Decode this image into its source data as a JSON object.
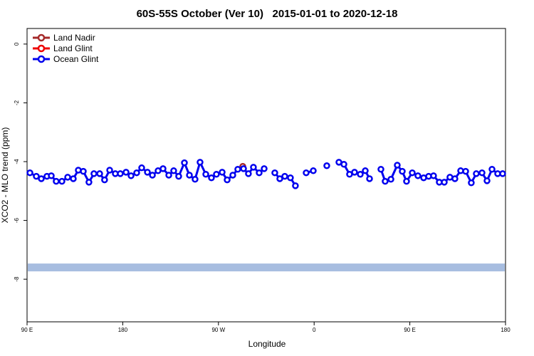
{
  "chart_data": {
    "type": "line",
    "title": "60S-55S October (Ver 10)   2015-01-01 to 2020-12-18",
    "x_label": "Longitude",
    "y_label": "XCO2 - MLO trend (ppm)",
    "xlim": [
      90,
      540
    ],
    "ylim": [
      -9.45,
      0.53
    ],
    "xticks": [
      {
        "value": 90,
        "label": "90 E"
      },
      180,
      {
        "value": 270,
        "label": "90 W"
      },
      {
        "value": 360,
        "label": "0"
      },
      {
        "value": 450,
        "label": "90 E"
      },
      {
        "value": 540,
        "label": "180"
      }
    ],
    "yticks": [
      0,
      -2,
      -4,
      -6,
      -8
    ],
    "legend": "top-left",
    "band": {
      "value": -7.6,
      "color": "#a7bde0"
    },
    "series": [
      {
        "name": "Land Nadir",
        "color": "#a52a2a",
        "x": [
          292.9
        ],
        "values": [
          -4.16
        ]
      },
      {
        "name": "Land Glint",
        "color": "#ee0000",
        "x": [],
        "values": []
      },
      {
        "name": "Ocean Glint",
        "color": "#0000ee",
        "x": [
          92.7,
          98.7,
          103.4,
          108.7,
          112.8,
          117.4,
          122.8,
          128.2,
          133.5,
          138.2,
          142.9,
          148.2,
          152.9,
          158.3,
          162.9,
          167.7,
          173.0,
          177.7,
          183.1,
          187.8,
          193.1,
          197.8,
          203.2,
          207.9,
          213.2,
          217.9,
          223.3,
          227.9,
          232.6,
          238.0,
          242.7,
          248.0,
          252.7,
          258.1,
          263.4,
          268.1,
          273.5,
          278.2,
          283.5,
          288.2,
          293.6,
          298.2,
          302.9,
          308.3,
          313.0,
          317.7,
          323.0,
          327.7,
          332.4,
          337.7,
          342.4,
          347.1,
          352.5,
          359.2,
          365.9,
          371.9,
          377.3,
          383.3,
          388.0,
          393.3,
          398.0,
          403.4,
          408.1,
          412.1,
          417.4,
          422.8,
          426.8,
          432.2,
          438.2,
          442.9,
          446.9,
          452.3,
          457.6,
          463.0,
          467.7,
          472.3,
          477.7,
          482.4,
          487.7,
          492.4,
          497.8,
          502.5,
          507.8,
          512.5,
          517.9,
          522.6,
          527.3,
          532.6,
          537.3
        ],
        "values": [
          -4.38,
          -4.5,
          -4.58,
          -4.5,
          -4.48,
          -4.67,
          -4.67,
          -4.53,
          -4.58,
          -4.29,
          -4.33,
          -4.7,
          -4.41,
          -4.41,
          -4.62,
          -4.29,
          -4.41,
          -4.41,
          -4.36,
          -4.48,
          -4.38,
          -4.21,
          -4.36,
          -4.46,
          -4.31,
          -4.24,
          -4.46,
          -4.31,
          -4.5,
          -4.04,
          -4.46,
          -4.6,
          -4.02,
          -4.43,
          -4.55,
          -4.43,
          -4.36,
          -4.62,
          -4.46,
          -4.26,
          -4.24,
          -4.41,
          -4.19,
          -4.38,
          -4.24,
          null,
          -4.38,
          -4.58,
          -4.5,
          -4.55,
          -4.82,
          null,
          -4.38,
          -4.31,
          null,
          -4.14,
          null,
          -4.02,
          -4.09,
          -4.43,
          -4.36,
          -4.43,
          -4.31,
          -4.58,
          null,
          -4.26,
          -4.67,
          -4.6,
          -4.12,
          -4.33,
          -4.67,
          -4.38,
          -4.48,
          -4.55,
          -4.5,
          -4.48,
          -4.7,
          -4.7,
          -4.53,
          -4.58,
          -4.31,
          -4.33,
          -4.72,
          -4.41,
          -4.38,
          -4.65,
          -4.26,
          -4.41,
          -4.41
        ]
      }
    ]
  }
}
